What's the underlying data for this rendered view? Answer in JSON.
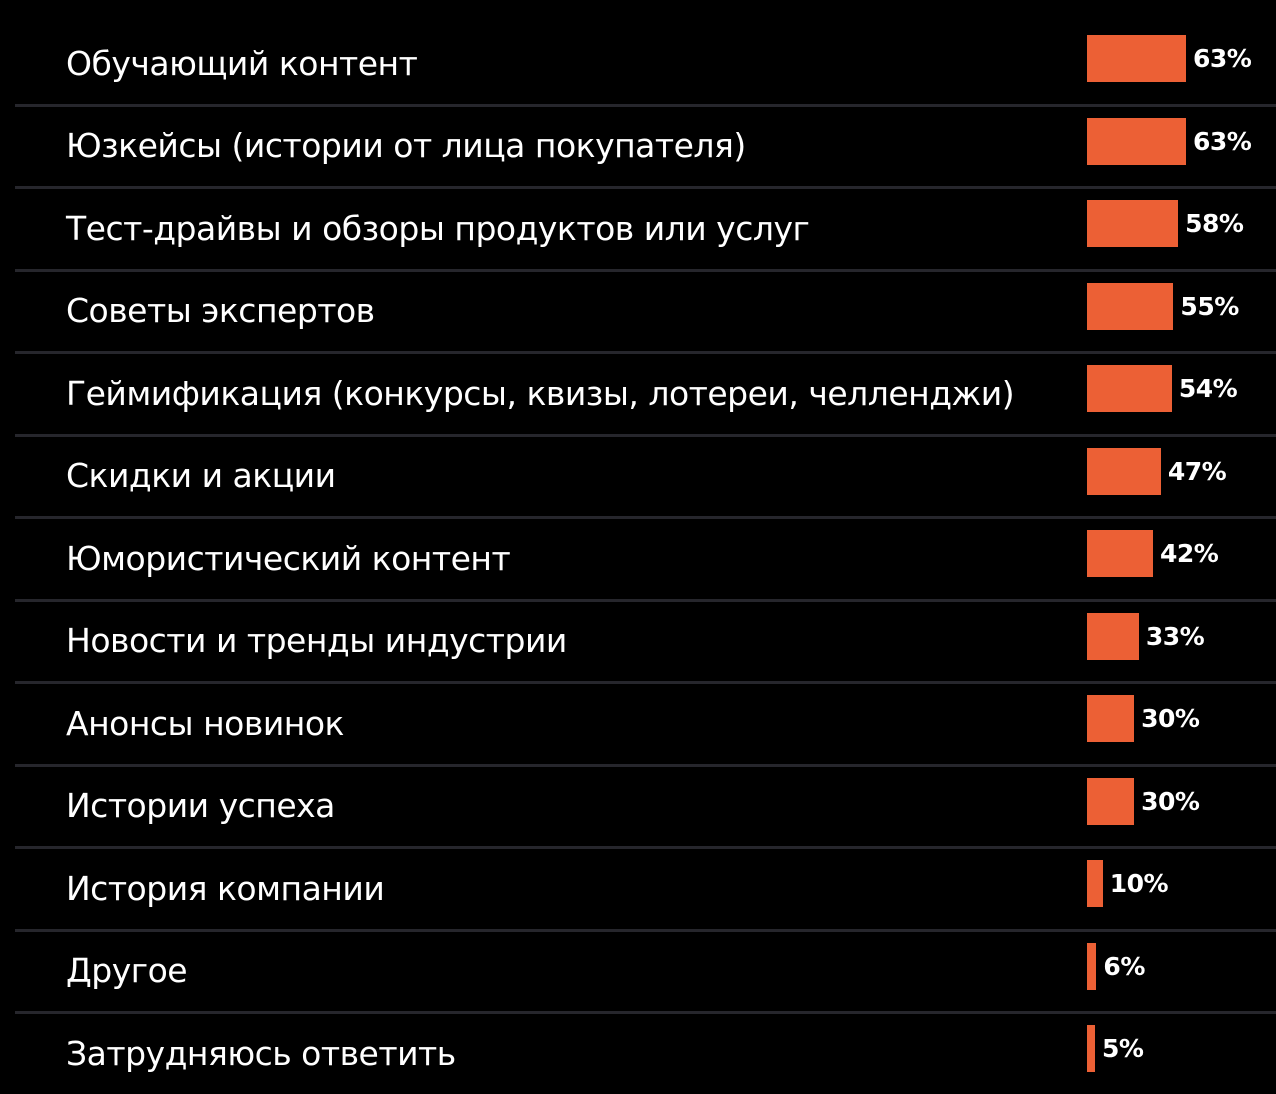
{
  "chart_data": {
    "type": "bar",
    "orientation": "horizontal",
    "categories": [
      "Обучающий контент",
      "Юзкейсы (истории  от лица покупателя)",
      "Тест-драйвы и обзоры продуктов или услуг",
      "Советы экспертов",
      "Геймификация (конкурсы, квизы, лотереи, челленджи)",
      "Скидки и акции",
      "Юмористический контент",
      "Новости и тренды индустрии",
      "Анонсы новинок",
      "Истории успеха",
      "История компании",
      "Другое",
      "Затрудняюсь ответить"
    ],
    "values": [
      63,
      63,
      58,
      55,
      54,
      47,
      42,
      33,
      30,
      30,
      10,
      6,
      5
    ],
    "value_labels": [
      "63%",
      "63%",
      "58%",
      "55%",
      "54%",
      "47%",
      "42%",
      "33%",
      "30%",
      "30%",
      "10%",
      "6%",
      "5%"
    ],
    "unit": "%",
    "xlim": [
      0,
      100
    ],
    "bar_color": "#ec6035",
    "grid": false
  }
}
